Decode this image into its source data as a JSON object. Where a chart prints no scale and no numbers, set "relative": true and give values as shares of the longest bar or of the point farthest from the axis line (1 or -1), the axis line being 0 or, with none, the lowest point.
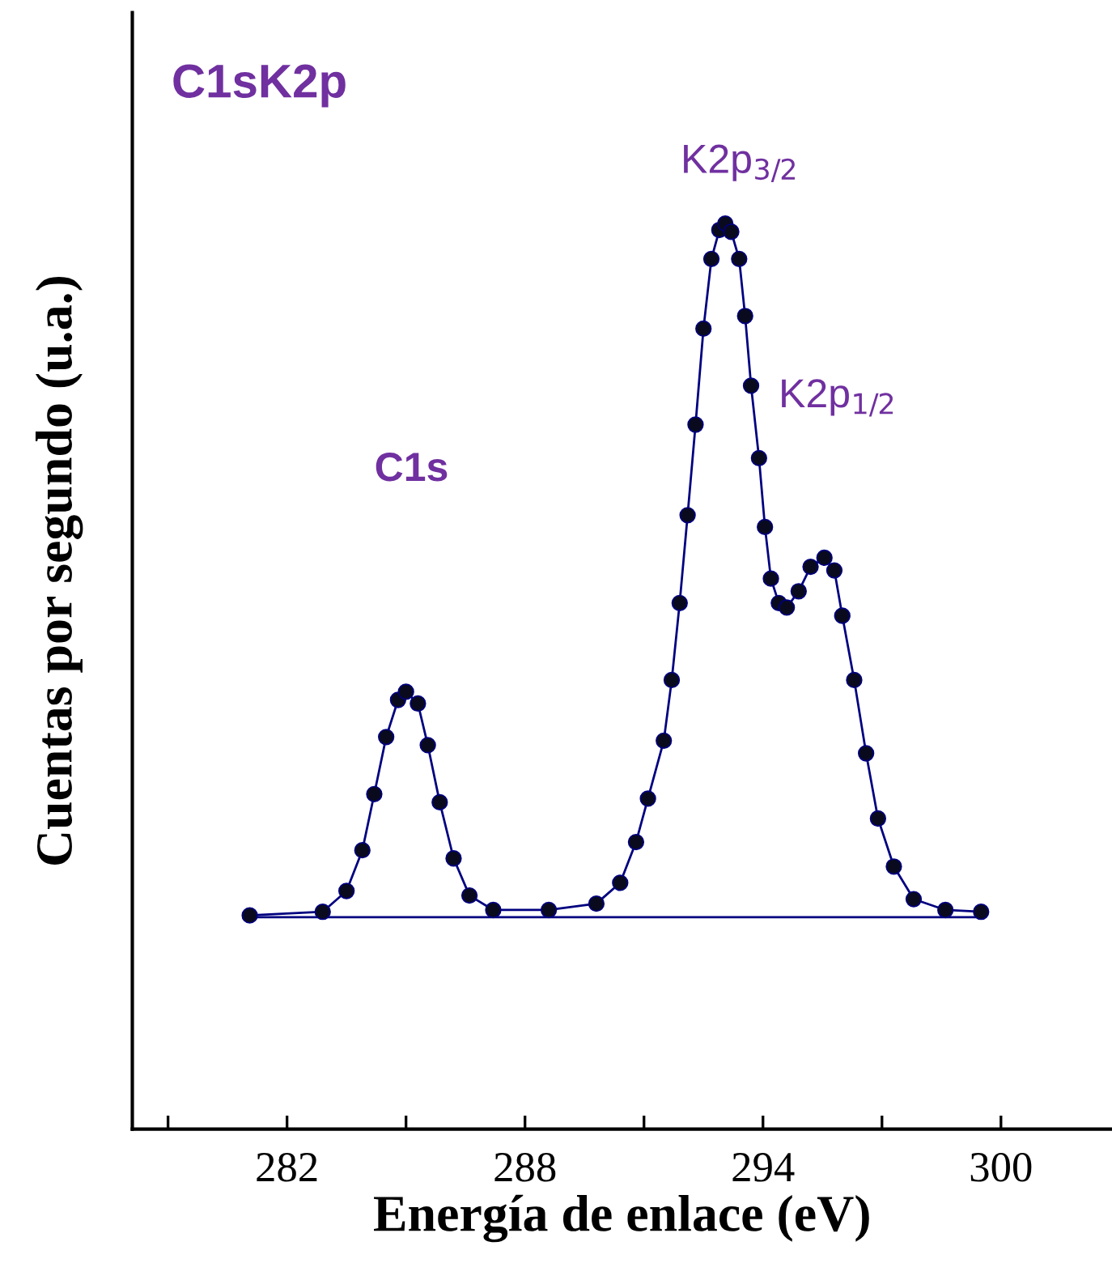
{
  "chart_data": {
    "type": "scatter",
    "title": "C1sK2p",
    "xlabel": "Energía de enlace (eV)",
    "ylabel": "Cuentas por segundo (u.a.)",
    "relative": true,
    "xlim": [
      278.1,
      302.8
    ],
    "xticks": [
      {
        "value": 279,
        "label": null
      },
      282,
      {
        "value": 285,
        "label": null
      },
      288,
      {
        "value": 291,
        "label": null
      },
      294,
      {
        "value": 297,
        "label": null
      },
      300
    ],
    "marker": "circle",
    "legend": false,
    "grid": false,
    "x": [
      281.06,
      282.9,
      283.5,
      283.9,
      284.2,
      284.5,
      284.8,
      285.0,
      285.3,
      285.55,
      285.85,
      286.2,
      286.6,
      287.2,
      288.6,
      289.8,
      290.4,
      290.8,
      291.1,
      291.5,
      291.7,
      291.9,
      292.1,
      292.3,
      292.5,
      292.7,
      292.9,
      293.05,
      293.2,
      293.4,
      293.55,
      293.7,
      293.9,
      294.05,
      294.2,
      294.4,
      294.6,
      294.9,
      295.2,
      295.55,
      295.8,
      296.0,
      296.3,
      296.6,
      296.9,
      297.3,
      297.8,
      298.6,
      299.5
    ],
    "series": [
      {
        "color": "#0a0a1e",
        "values": [
          0.236,
          0.24,
          0.263,
          0.308,
          0.37,
          0.433,
          0.474,
          0.483,
          0.47,
          0.424,
          0.361,
          0.299,
          0.258,
          0.242,
          0.242,
          0.249,
          0.272,
          0.317,
          0.365,
          0.429,
          0.496,
          0.581,
          0.678,
          0.778,
          0.884,
          0.961,
          0.993,
          1.0,
          0.991,
          0.961,
          0.898,
          0.821,
          0.741,
          0.665,
          0.608,
          0.581,
          0.576,
          0.594,
          0.621,
          0.631,
          0.617,
          0.567,
          0.496,
          0.415,
          0.343,
          0.29,
          0.254,
          0.242,
          0.24
        ]
      },
      {
        "type": "line",
        "color": "#000080",
        "line_style": "solid",
        "marker": "none",
        "values": [
          0.236,
          0.24,
          0.263,
          0.308,
          0.37,
          0.433,
          0.474,
          0.483,
          0.47,
          0.424,
          0.361,
          0.299,
          0.258,
          0.242,
          0.242,
          0.249,
          0.272,
          0.317,
          0.365,
          0.429,
          0.496,
          0.581,
          0.678,
          0.778,
          0.884,
          0.961,
          0.993,
          1.0,
          0.991,
          0.961,
          0.898,
          0.821,
          0.741,
          0.665,
          0.608,
          0.581,
          0.576,
          0.594,
          0.621,
          0.631,
          0.617,
          0.567,
          0.496,
          0.415,
          0.343,
          0.29,
          0.254,
          0.242,
          0.24
        ]
      },
      {
        "type": "line",
        "color": "#000080",
        "line_style": "solid",
        "marker": "none",
        "x": [
          281.06,
          299.5
        ],
        "values": [
          0.234,
          0.234
        ]
      }
    ],
    "annotations": [
      "C1s",
      "K2p$_{3/2}$",
      "K2p$_{1/2}$"
    ]
  }
}
